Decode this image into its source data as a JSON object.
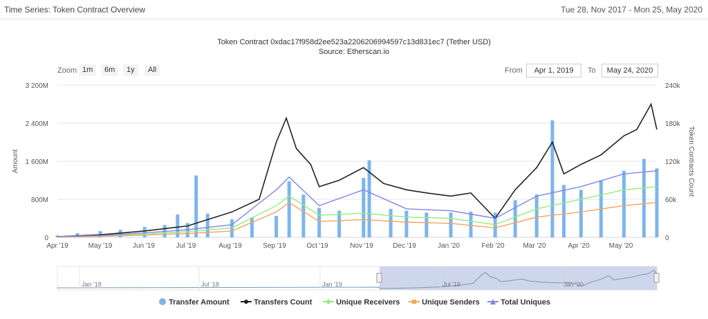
{
  "header": {
    "title": "Time Series: Token Contract Overview",
    "date_range": "Tue 28, Nov 2017 - Mon 25, May 2020"
  },
  "zoom": {
    "label": "Zoom",
    "buttons": [
      "1m",
      "6m",
      "1y",
      "All"
    ]
  },
  "range": {
    "from_label": "From",
    "from_value": "Apr 1, 2019",
    "to_label": "To",
    "to_value": "May 24, 2020"
  },
  "navigator": {
    "labels": [
      "Jan '18",
      "Jul '18",
      "Jan '19",
      "Jul '19",
      "Jan '20"
    ]
  },
  "colors": {
    "transfer_amount": "#7cb5ec",
    "transfers_count": "#222222",
    "unique_receivers": "#90ed7d",
    "unique_senders": "#f7a35c",
    "total_uniques": "#8085e9",
    "navigator_fill": "#c5cfe8"
  },
  "chart_data": {
    "type": "bar",
    "title": "Token Contract 0xdac17f958d2ee523a2206206994597c13d831ec7 (Tether USD)",
    "subtitle": "Source: Etherscan.io",
    "x_range": [
      "2019-04-01",
      "2020-05-24"
    ],
    "x_ticks": [
      "Apr '19",
      "May '19",
      "Jun '19",
      "Jul '19",
      "Aug '19",
      "Sep '19",
      "Oct '19",
      "Nov '19",
      "Dec '19",
      "Jan '20",
      "Feb '20",
      "Mar '20",
      "Apr '20",
      "May '20"
    ],
    "y_left": {
      "label": "Amount",
      "range": [
        0,
        3200000000
      ],
      "ticks": [
        "0",
        "800M",
        "1 600M",
        "2 400M",
        "3 200M"
      ]
    },
    "y_right": {
      "label": "Token Contracts Count",
      "range": [
        0,
        240000
      ],
      "ticks": [
        "0",
        "60k",
        "120k",
        "180k",
        "240k"
      ]
    },
    "grid": true,
    "legend_position": "bottom-center",
    "series": [
      {
        "name": "Transfer Amount",
        "axis": "left",
        "type": "column",
        "points": [
          [
            "2019-04-01",
            40000000
          ],
          [
            "2019-04-15",
            90000000
          ],
          [
            "2019-05-01",
            130000000
          ],
          [
            "2019-05-15",
            160000000
          ],
          [
            "2019-06-01",
            220000000
          ],
          [
            "2019-06-15",
            260000000
          ],
          [
            "2019-06-24",
            480000000
          ],
          [
            "2019-07-01",
            300000000
          ],
          [
            "2019-07-07",
            1300000000
          ],
          [
            "2019-07-15",
            500000000
          ],
          [
            "2019-08-01",
            380000000
          ],
          [
            "2019-08-15",
            420000000
          ],
          [
            "2019-09-01",
            450000000
          ],
          [
            "2019-09-10",
            1180000000
          ],
          [
            "2019-09-20",
            900000000
          ],
          [
            "2019-10-01",
            620000000
          ],
          [
            "2019-10-15",
            560000000
          ],
          [
            "2019-11-01",
            1250000000
          ],
          [
            "2019-11-05",
            1620000000
          ],
          [
            "2019-11-20",
            600000000
          ],
          [
            "2019-12-01",
            560000000
          ],
          [
            "2019-12-15",
            520000000
          ],
          [
            "2020-01-01",
            520000000
          ],
          [
            "2020-01-15",
            540000000
          ],
          [
            "2020-02-01",
            520000000
          ],
          [
            "2020-02-15",
            780000000
          ],
          [
            "2020-03-01",
            900000000
          ],
          [
            "2020-03-12",
            2460000000
          ],
          [
            "2020-03-20",
            1100000000
          ],
          [
            "2020-04-01",
            1000000000
          ],
          [
            "2020-04-15",
            1200000000
          ],
          [
            "2020-05-01",
            1400000000
          ],
          [
            "2020-05-15",
            1650000000
          ],
          [
            "2020-05-24",
            1450000000
          ]
        ]
      },
      {
        "name": "Transfers Count",
        "axis": "right",
        "type": "line",
        "points": [
          [
            "2019-04-01",
            1000
          ],
          [
            "2019-05-01",
            4000
          ],
          [
            "2019-06-01",
            10000
          ],
          [
            "2019-07-01",
            18000
          ],
          [
            "2019-08-01",
            40000
          ],
          [
            "2019-08-20",
            60000
          ],
          [
            "2019-08-28",
            120000
          ],
          [
            "2019-09-01",
            150000
          ],
          [
            "2019-09-08",
            188000
          ],
          [
            "2019-09-15",
            140000
          ],
          [
            "2019-09-25",
            115000
          ],
          [
            "2019-10-01",
            80000
          ],
          [
            "2019-10-15",
            90000
          ],
          [
            "2019-11-01",
            110000
          ],
          [
            "2019-11-15",
            85000
          ],
          [
            "2019-12-01",
            75000
          ],
          [
            "2019-12-15",
            70000
          ],
          [
            "2020-01-01",
            65000
          ],
          [
            "2020-01-15",
            70000
          ],
          [
            "2020-02-01",
            30000
          ],
          [
            "2020-02-15",
            75000
          ],
          [
            "2020-03-01",
            110000
          ],
          [
            "2020-03-12",
            150000
          ],
          [
            "2020-03-20",
            100000
          ],
          [
            "2020-04-01",
            115000
          ],
          [
            "2020-04-15",
            130000
          ],
          [
            "2020-05-01",
            160000
          ],
          [
            "2020-05-10",
            170000
          ],
          [
            "2020-05-20",
            210000
          ],
          [
            "2020-05-24",
            170000
          ]
        ]
      },
      {
        "name": "Unique Receivers",
        "axis": "right",
        "type": "line",
        "points": [
          [
            "2019-04-01",
            800
          ],
          [
            "2019-05-01",
            2000
          ],
          [
            "2019-06-01",
            5000
          ],
          [
            "2019-07-01",
            9000
          ],
          [
            "2019-08-01",
            15000
          ],
          [
            "2019-09-01",
            50000
          ],
          [
            "2019-09-10",
            65000
          ],
          [
            "2019-10-01",
            35000
          ],
          [
            "2019-11-01",
            38000
          ],
          [
            "2019-12-01",
            32000
          ],
          [
            "2020-01-01",
            30000
          ],
          [
            "2020-02-01",
            20000
          ],
          [
            "2020-03-01",
            45000
          ],
          [
            "2020-04-01",
            60000
          ],
          [
            "2020-05-01",
            75000
          ],
          [
            "2020-05-24",
            80000
          ]
        ]
      },
      {
        "name": "Unique Senders",
        "axis": "right",
        "type": "line",
        "points": [
          [
            "2019-04-01",
            500
          ],
          [
            "2019-05-01",
            1500
          ],
          [
            "2019-06-01",
            3500
          ],
          [
            "2019-07-01",
            6000
          ],
          [
            "2019-08-01",
            10000
          ],
          [
            "2019-09-01",
            40000
          ],
          [
            "2019-09-10",
            55000
          ],
          [
            "2019-10-01",
            25000
          ],
          [
            "2019-11-01",
            28000
          ],
          [
            "2019-12-01",
            24000
          ],
          [
            "2020-01-01",
            22000
          ],
          [
            "2020-02-01",
            15000
          ],
          [
            "2020-03-01",
            32000
          ],
          [
            "2020-04-01",
            40000
          ],
          [
            "2020-05-01",
            50000
          ],
          [
            "2020-05-24",
            55000
          ]
        ]
      },
      {
        "name": "Total Uniques",
        "axis": "right",
        "type": "line",
        "points": [
          [
            "2019-04-01",
            1200
          ],
          [
            "2019-05-01",
            3000
          ],
          [
            "2019-06-01",
            7000
          ],
          [
            "2019-07-01",
            12000
          ],
          [
            "2019-08-01",
            20000
          ],
          [
            "2019-09-01",
            75000
          ],
          [
            "2019-09-10",
            95000
          ],
          [
            "2019-10-01",
            50000
          ],
          [
            "2019-11-01",
            75000
          ],
          [
            "2019-12-01",
            45000
          ],
          [
            "2020-01-01",
            42000
          ],
          [
            "2020-02-01",
            30000
          ],
          [
            "2020-03-01",
            65000
          ],
          [
            "2020-04-01",
            80000
          ],
          [
            "2020-05-01",
            100000
          ],
          [
            "2020-05-24",
            105000
          ]
        ]
      }
    ]
  }
}
